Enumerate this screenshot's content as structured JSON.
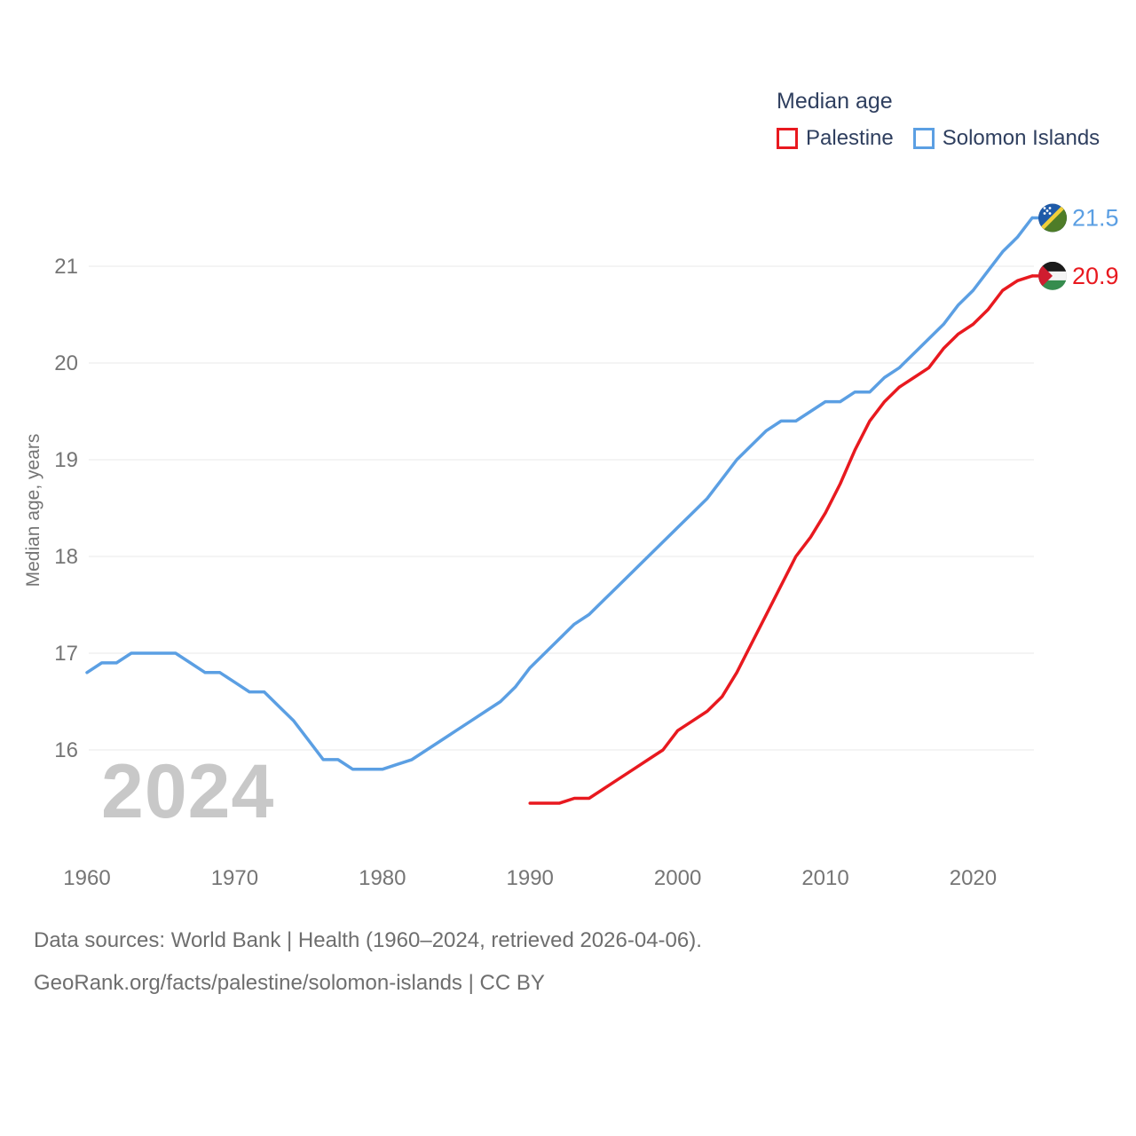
{
  "legend": {
    "title": "Median age",
    "items": [
      {
        "label": "Palestine",
        "color": "#e8191f"
      },
      {
        "label": "Solomon Islands",
        "color": "#5b9fe3"
      }
    ]
  },
  "watermark": "2024",
  "y_axis": {
    "title": "Median age, years",
    "ticks": [
      16,
      17,
      18,
      19,
      20,
      21
    ]
  },
  "x_axis": {
    "ticks": [
      1960,
      1970,
      1980,
      1990,
      2000,
      2010,
      2020
    ]
  },
  "footer": {
    "line1": "Data sources: World Bank | Health (1960–2024, retrieved 2026-04-06).",
    "line2": "GeoRank.org/facts/palestine/solomon-islands | CC BY"
  },
  "chart_data": {
    "type": "line",
    "title": "Median age",
    "xlabel": "",
    "ylabel": "Median age, years",
    "xlim": [
      1960,
      2024
    ],
    "ylim": [
      15.3,
      21.7
    ],
    "grid": true,
    "legend_position": "top-right",
    "series": [
      {
        "name": "Palestine",
        "color": "#e8191f",
        "flag": "palestine-flag",
        "flag_colors": {
          "black": "#1b1b1b",
          "white": "#f4f4f4",
          "green": "#368c4e",
          "red": "#cf1d2f"
        },
        "end_label": "20.9",
        "start_year": 1990,
        "values": [
          15.45,
          15.45,
          15.45,
          15.5,
          15.5,
          15.6,
          15.7,
          15.8,
          15.9,
          16.0,
          16.2,
          16.3,
          16.4,
          16.55,
          16.8,
          17.1,
          17.4,
          17.7,
          18.0,
          18.2,
          18.45,
          18.75,
          19.1,
          19.4,
          19.6,
          19.75,
          19.85,
          19.95,
          20.15,
          20.3,
          20.4,
          20.55,
          20.75,
          20.85,
          20.9
        ]
      },
      {
        "name": "Solomon Islands",
        "color": "#5b9fe3",
        "flag": "solomon-islands-flag",
        "flag_colors": {
          "blue": "#1e5aa8",
          "green": "#4e7c28",
          "yellow": "#f0cf3a",
          "stars": "#ffffff"
        },
        "end_label": "21.5",
        "start_year": 1960,
        "values": [
          16.8,
          16.9,
          16.9,
          17.0,
          17.0,
          17.0,
          17.0,
          16.9,
          16.8,
          16.8,
          16.7,
          16.6,
          16.6,
          16.45,
          16.3,
          16.1,
          15.9,
          15.9,
          15.8,
          15.8,
          15.8,
          15.85,
          15.9,
          16.0,
          16.1,
          16.2,
          16.3,
          16.4,
          16.5,
          16.65,
          16.85,
          17.0,
          17.15,
          17.3,
          17.4,
          17.55,
          17.7,
          17.85,
          18.0,
          18.15,
          18.3,
          18.45,
          18.6,
          18.8,
          19.0,
          19.15,
          19.3,
          19.4,
          19.4,
          19.5,
          19.6,
          19.6,
          19.7,
          19.7,
          19.85,
          19.95,
          20.1,
          20.25,
          20.4,
          20.6,
          20.75,
          20.95,
          21.15,
          21.3,
          21.5
        ]
      }
    ],
    "grid_color": "#e8e8e8",
    "axis_text_color": "#757575"
  }
}
